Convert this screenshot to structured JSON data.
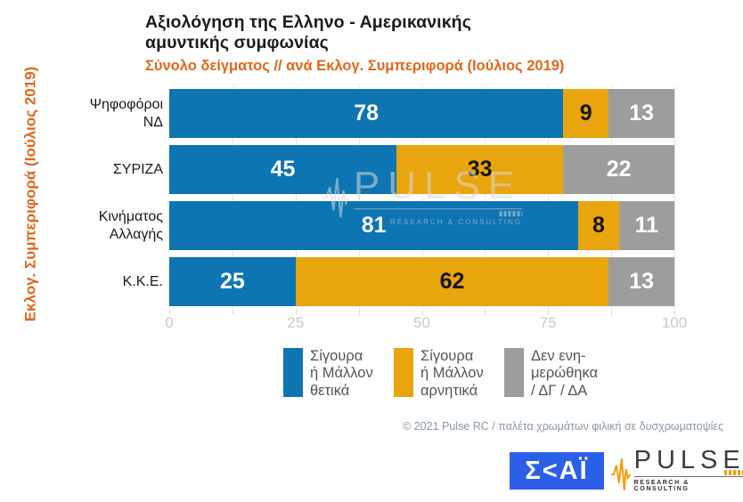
{
  "header": {
    "title_line1": "Αξιολόγηση της Ελληνο - Αμερικανικής",
    "title_line2": "αμυντικής συμφωνίας",
    "subtitle": "Σύνολο δείγματος // ανά Εκλογ. Συμπεριφορά (Ιούλιος 2019)"
  },
  "y_axis_label": "Εκλογ. Συμπεριφορά (Ιούλιος 2019)",
  "chart_data": {
    "type": "bar",
    "orientation": "horizontal",
    "stacked": true,
    "categories": [
      "Ψηφοφόροι\nΝΔ",
      "ΣΥΡΙΖΑ",
      "Κινήματος\nΑλλαγής",
      "Κ.Κ.Ε."
    ],
    "series": [
      {
        "name": "Σίγουρα ή Μάλλον θετικά",
        "color": "#0d75b2",
        "label_color": "#ffffff",
        "values": [
          78,
          45,
          81,
          25
        ]
      },
      {
        "name": "Σίγουρα ή Μάλλον αρνητικά",
        "color": "#e9a50e",
        "label_color": "#141414",
        "values": [
          9,
          33,
          8,
          62
        ]
      },
      {
        "name": "Δεν ενημερώθηκα / ΔΓ / ΔΑ",
        "color": "#9d9d9d",
        "label_color": "#ffffff",
        "values": [
          13,
          22,
          11,
          13
        ]
      }
    ],
    "xlim": [
      0,
      100
    ],
    "x_ticks": [
      0,
      25,
      50,
      75,
      100
    ],
    "minor_tick_step": 12.5,
    "grid": true,
    "legend_position": "bottom"
  },
  "legend": {
    "items": [
      {
        "label": "Σίγουρα\nή Μάλλον\nθετικά",
        "color": "#0d75b2"
      },
      {
        "label": "Σίγουρα\nή Μάλλον\nαρνητικά",
        "color": "#e9a50e"
      },
      {
        "label": "Δεν ενη-\nμερώθηκα\n/ ΔΓ / ΔΑ",
        "color": "#9d9d9d"
      }
    ]
  },
  "footer": {
    "copyright": "© 2021 Pulse RC  /  παλέτα χρωμάτων φιλική σε δυσχρωματοψίες"
  },
  "logos": {
    "skai_text": "Σ<ΑΪ",
    "pulse_text": "PULSE",
    "pulse_sub": "RESEARCH & CONSULTING"
  },
  "watermark": {
    "text": "PULSE",
    "sub": "RESEARCH & CONSULTING"
  }
}
